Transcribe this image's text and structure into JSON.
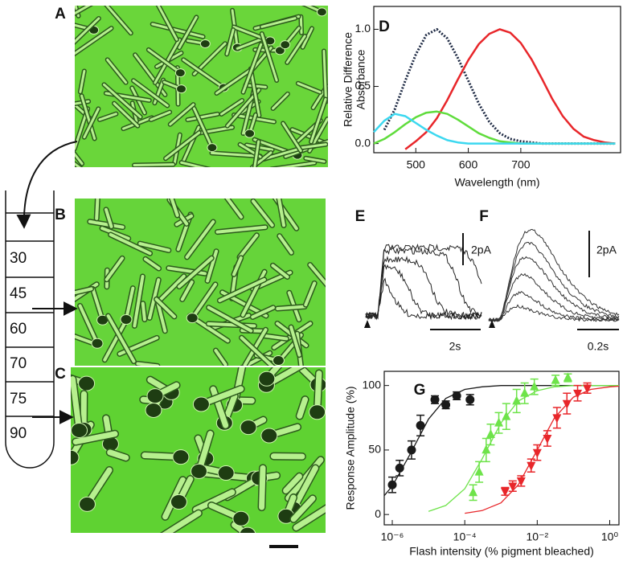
{
  "panels": {
    "a": "A",
    "b": "B",
    "c": "C",
    "d": "D",
    "e": "E",
    "f": "F",
    "g": "G"
  },
  "tube": {
    "labels": [
      "30",
      "45",
      "60",
      "70",
      "75",
      "90"
    ]
  },
  "traces": {
    "e": {
      "amplitude": "2pA",
      "time": "2s"
    },
    "f": {
      "amplitude": "2pA",
      "time": "0.2s"
    }
  },
  "chart_data": [
    {
      "type": "line",
      "xlabel": "Wavelength (nm)",
      "ylabel": [
        "Relative Difference",
        "Absorbance"
      ],
      "x": [
        420,
        440,
        460,
        480,
        500,
        520,
        540,
        560,
        580,
        600,
        620,
        640,
        660,
        680,
        700,
        720,
        740,
        760,
        780,
        800,
        820,
        840,
        860,
        880
      ],
      "xlim": [
        420,
        890
      ],
      "xticks": [
        500,
        600,
        700
      ],
      "ylim": [
        -0.08,
        1.2
      ],
      "yticks": [
        {
          "value": 0,
          "label": "0.0"
        },
        {
          "value": 0.5,
          "label": "0.5"
        },
        {
          "value": 1,
          "label": "1.0"
        }
      ],
      "series": [
        {
          "color": "#1e2a44",
          "dash": true,
          "values": [
            null,
            0.12,
            0.3,
            0.55,
            0.78,
            0.95,
            1.0,
            0.92,
            0.75,
            0.55,
            0.35,
            0.19,
            0.09,
            0.04,
            0.02,
            0.01,
            0,
            0,
            0,
            0,
            0,
            0,
            0,
            0
          ]
        },
        {
          "color": "#e8262a",
          "values": [
            null,
            null,
            null,
            -0.05,
            0.02,
            0.1,
            0.22,
            0.38,
            0.56,
            0.73,
            0.87,
            0.96,
            1.0,
            0.97,
            0.88,
            0.74,
            0.57,
            0.39,
            0.24,
            0.13,
            0.06,
            0.03,
            0.01,
            0
          ]
        },
        {
          "color": "#5fdc3c",
          "values": [
            0,
            0.04,
            0.1,
            0.17,
            0.23,
            0.27,
            0.28,
            0.26,
            0.21,
            0.15,
            0.09,
            0.05,
            0.02,
            0.01,
            0,
            0,
            0,
            0,
            0,
            0,
            0,
            0,
            0,
            0
          ]
        },
        {
          "color": "#3cd8f0",
          "values": [
            0.1,
            0.2,
            0.26,
            0.24,
            0.18,
            0.12,
            0.07,
            0.03,
            0.01,
            0,
            0,
            0,
            0,
            0,
            0,
            0,
            0,
            0,
            0,
            0,
            0,
            0,
            0,
            0
          ]
        }
      ]
    },
    {
      "type": "scatter",
      "xlog": true,
      "xlabel": "Flash intensity (% pigment bleached)",
      "ylabel": "Response Amplitude (%)",
      "xlim": [
        6e-07,
        1.8
      ],
      "xticks": [
        {
          "value": 1e-06,
          "label": "10⁻⁶"
        },
        {
          "value": 0.0001,
          "label": "10⁻⁴"
        },
        {
          "value": 0.01,
          "label": "10⁻²"
        },
        {
          "value": 1,
          "label": "10⁰"
        }
      ],
      "ylim": [
        -8,
        111
      ],
      "yticks": [
        0,
        50,
        100
      ],
      "series": [
        {
          "color": "#1a1a1a",
          "marker": "circle",
          "x": [
            1e-06,
            1.6e-06,
            3.4e-06,
            6e-06,
            1.5e-05,
            3e-05,
            6e-05,
            0.00014
          ],
          "values": [
            23,
            36,
            50,
            69,
            89,
            85,
            92,
            89
          ],
          "errors": [
            6,
            6,
            7,
            8,
            3,
            3,
            3,
            4
          ]
        },
        {
          "color": "#6ee34a",
          "marker": "up",
          "x": [
            0.00017,
            0.00025,
            0.00039,
            0.00052,
            0.00087,
            0.0014,
            0.0027,
            0.0045,
            0.0083,
            0.032,
            0.07
          ],
          "values": [
            17,
            33,
            50,
            62,
            71,
            76,
            88,
            94,
            99,
            104,
            106
          ],
          "errors": [
            6,
            8,
            9,
            8,
            8,
            10,
            9,
            8,
            6,
            4,
            3
          ]
        },
        {
          "color": "#e8262a",
          "marker": "down",
          "x": [
            0.0013,
            0.0021,
            0.0036,
            0.0068,
            0.01,
            0.019,
            0.035,
            0.066,
            0.13,
            0.24
          ],
          "values": [
            18,
            22,
            26,
            38,
            48,
            59,
            75,
            86,
            94,
            98
          ],
          "errors": [
            3,
            4,
            4,
            5,
            6,
            6,
            8,
            8,
            6,
            4
          ]
        }
      ],
      "fit_x": [
        6e-07,
        1e-06,
        3e-06,
        1e-05,
        3e-05,
        0.0001,
        0.0003,
        0.001,
        0.003,
        0.01,
        0.03,
        0.1,
        0.3,
        1,
        1.8
      ],
      "fits": [
        {
          "color": "#1a1a1a",
          "values": [
            14.6,
            22,
            46,
            74,
            90,
            97,
            99,
            100,
            100,
            100,
            100,
            100,
            100,
            100,
            100
          ]
        },
        {
          "color": "#6ee34a",
          "values": [
            null,
            null,
            null,
            2.4,
            7,
            20,
            43,
            71,
            88,
            96,
            99,
            100,
            100,
            100,
            100
          ]
        },
        {
          "color": "#e8262a",
          "values": [
            null,
            null,
            null,
            null,
            null,
            1,
            3,
            9,
            23,
            50,
            75,
            91,
            97,
            99,
            99.5
          ]
        }
      ]
    }
  ]
}
